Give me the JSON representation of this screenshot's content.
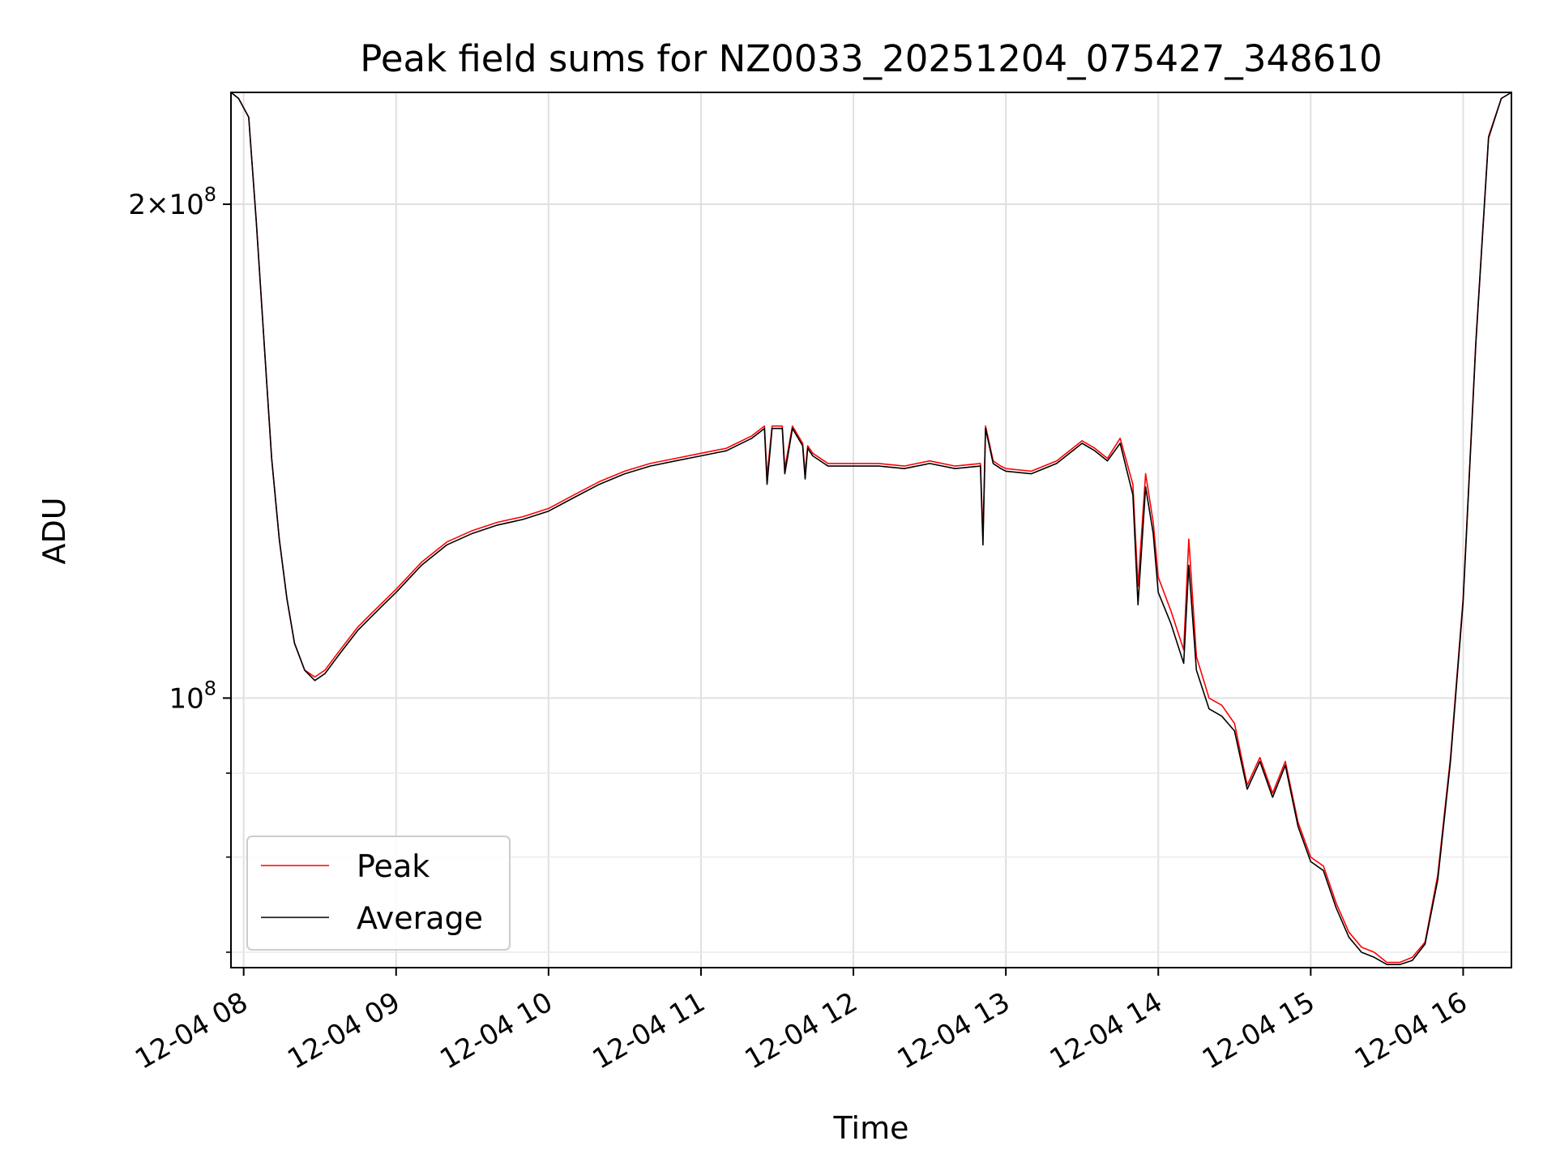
{
  "chart_data": {
    "type": "line",
    "title": "Peak field sums for NZ0033_20251204_075427_348610",
    "xlabel": "Time",
    "ylabel": "ADU",
    "y_scale": "log",
    "xlim": [
      "2025-12-04 07:55",
      "2025-12-04 16:19"
    ],
    "ylim": [
      68500000,
      234000000
    ],
    "grid": true,
    "legend_position": "lower-left",
    "x_ticks": [
      "12-04 08",
      "12-04 09",
      "12-04 10",
      "12-04 11",
      "12-04 12",
      "12-04 13",
      "12-04 14",
      "12-04 15",
      "12-04 16"
    ],
    "y_ticks": [
      {
        "value": 200000000,
        "mantissa": "2",
        "exp": "8"
      },
      {
        "value": 100000000,
        "mantissa": "",
        "exp": "8"
      }
    ],
    "y_minor_ticks": [
      70000000,
      80000000,
      90000000
    ],
    "x": [
      "07:55",
      "07:58",
      "08:02",
      "08:05",
      "08:08",
      "08:11",
      "08:14",
      "08:17",
      "08:20",
      "08:24",
      "08:28",
      "08:32",
      "08:36",
      "08:39",
      "08:42",
      "08:45",
      "08:50",
      "08:55",
      "09:00",
      "09:10",
      "09:20",
      "09:30",
      "09:40",
      "09:50",
      "10:00",
      "10:10",
      "10:20",
      "10:30",
      "10:40",
      "10:50",
      "11:00",
      "11:10",
      "11:20",
      "11:25",
      "11:26",
      "11:28",
      "11:32",
      "11:33",
      "11:36",
      "11:40",
      "11:41",
      "11:42",
      "11:44",
      "11:50",
      "12:00",
      "12:10",
      "12:20",
      "12:30",
      "12:40",
      "12:50",
      "12:51",
      "12:52",
      "12:55",
      "12:58",
      "13:00",
      "13:10",
      "13:20",
      "13:30",
      "13:35",
      "13:40",
      "13:45",
      "13:50",
      "13:52",
      "13:55",
      "13:58",
      "14:00",
      "14:05",
      "14:10",
      "14:12",
      "14:15",
      "14:20",
      "14:25",
      "14:30",
      "14:35",
      "14:40",
      "14:45",
      "14:50",
      "14:55",
      "15:00",
      "15:05",
      "15:10",
      "15:15",
      "15:20",
      "15:25",
      "15:30",
      "15:35",
      "15:40",
      "15:45",
      "15:50",
      "15:55",
      "16:00",
      "16:05",
      "16:10",
      "16:15",
      "16:19"
    ],
    "series": [
      {
        "name": "Peak",
        "color": "#ff0000",
        "values": [
          234000000,
          232000000,
          226000000,
          195000000,
          165000000,
          140000000,
          125000000,
          115000000,
          108000000,
          104000000,
          103000000,
          104000000,
          106000000,
          107500000,
          109000000,
          110500000,
          112500000,
          114500000,
          116500000,
          121000000,
          124500000,
          126500000,
          128000000,
          129000000,
          130500000,
          133000000,
          135500000,
          137500000,
          139000000,
          140000000,
          141000000,
          142000000,
          144500000,
          146500000,
          136500000,
          146500000,
          146500000,
          138000000,
          146500000,
          143000000,
          137000000,
          142500000,
          141000000,
          139000000,
          139000000,
          139000000,
          138500000,
          139500000,
          138500000,
          139000000,
          125500000,
          146500000,
          139500000,
          138500000,
          138000000,
          137500000,
          139500000,
          143500000,
          142000000,
          140000000,
          144000000,
          135000000,
          117000000,
          137000000,
          128000000,
          118500000,
          113000000,
          107000000,
          125000000,
          106000000,
          100000000,
          99000000,
          96500000,
          88500000,
          92000000,
          87500000,
          91500000,
          84000000,
          80000000,
          79000000,
          75000000,
          72000000,
          70500000,
          70000000,
          69000000,
          69000000,
          69500000,
          71000000,
          78000000,
          92000000,
          115000000,
          165000000,
          220000000,
          232000000,
          234000000
        ]
      },
      {
        "name": "Average",
        "color": "#000000",
        "values": [
          234000000,
          232000000,
          226000000,
          195000000,
          165000000,
          140000000,
          125000000,
          115000000,
          108000000,
          104000000,
          102500000,
          103500000,
          105500000,
          107000000,
          108500000,
          110000000,
          112000000,
          114000000,
          116000000,
          120500000,
          124000000,
          126000000,
          127500000,
          128500000,
          130000000,
          132500000,
          135000000,
          137000000,
          138500000,
          139500000,
          140500000,
          141500000,
          144000000,
          146000000,
          135000000,
          146000000,
          146000000,
          137000000,
          146000000,
          142500000,
          136000000,
          142000000,
          140500000,
          138500000,
          138500000,
          138500000,
          138000000,
          139000000,
          138000000,
          138500000,
          124000000,
          146000000,
          139000000,
          138000000,
          137500000,
          137000000,
          139000000,
          143000000,
          141500000,
          139500000,
          143000000,
          133000000,
          114000000,
          134500000,
          126000000,
          116000000,
          111000000,
          105000000,
          120500000,
          104000000,
          98500000,
          97500000,
          95500000,
          88000000,
          91500000,
          87000000,
          91000000,
          83500000,
          79500000,
          78500000,
          74500000,
          71500000,
          70000000,
          69500000,
          68800000,
          68800000,
          69200000,
          70800000,
          77500000,
          91500000,
          114500000,
          164500000,
          219500000,
          232000000,
          234000000
        ]
      }
    ]
  }
}
